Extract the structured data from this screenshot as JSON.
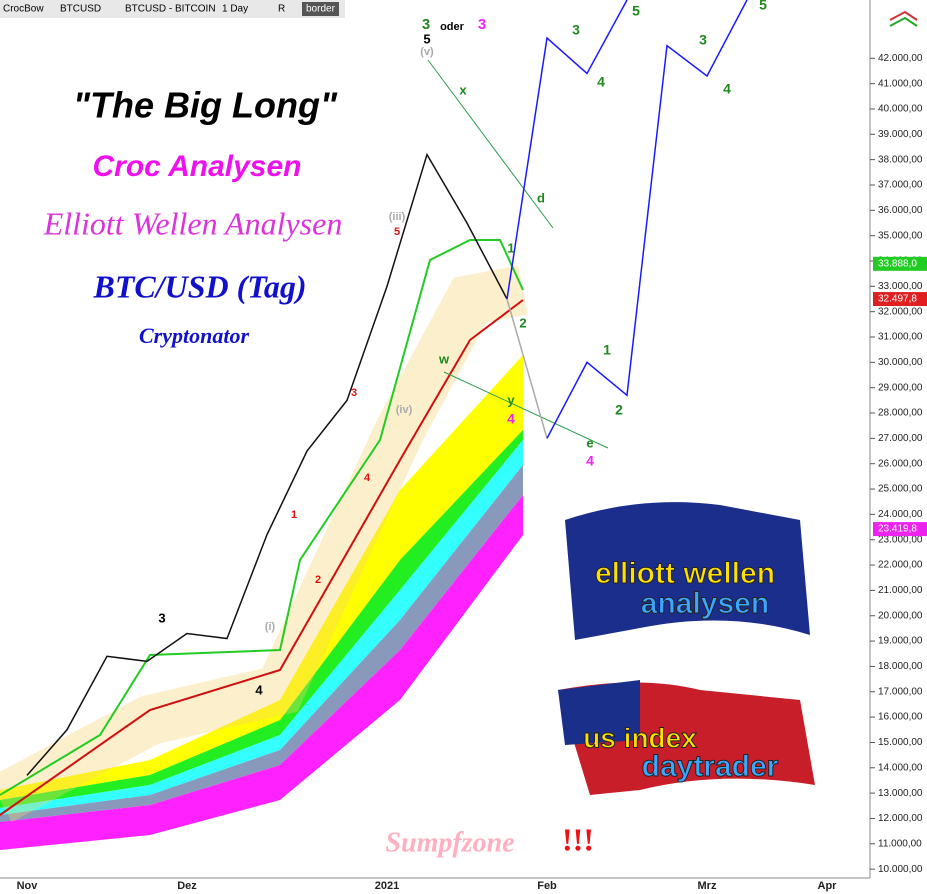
{
  "chart_data": {
    "type": "line",
    "toolbar": [
      "CrocBow",
      "BTCUSD",
      "BTCUSD - BITCOIN",
      "1 Day",
      "R",
      "border"
    ],
    "title": "\"The Big Long\"",
    "subtitles": [
      "Croc Analysen",
      "Elliott Wellen Analysen",
      "BTC/USD (Tag)",
      "Cryptonator"
    ],
    "footer": [
      "Sumpfzone",
      "!!!"
    ],
    "logos": [
      "elliott wellen",
      "analysen",
      "us index",
      "daytrader"
    ],
    "categories": [
      "Nov",
      null,
      null,
      null,
      "Dez",
      null,
      null,
      null,
      null,
      "2021",
      null,
      null,
      null,
      "Feb",
      null,
      null,
      null,
      "Mrz",
      null,
      null,
      "Apr"
    ],
    "series": [
      {
        "color": "#111111",
        "values": [
          13700,
          15500,
          18400,
          18200,
          19300,
          19100,
          23200,
          26500,
          28500,
          33000,
          38200,
          35500,
          32500,
          null,
          null,
          null,
          null,
          null,
          null,
          null,
          null
        ]
      },
      {
        "color": "#1a1aff",
        "values": [
          null,
          null,
          null,
          null,
          null,
          null,
          null,
          null,
          null,
          null,
          null,
          null,
          32500,
          42800,
          41400,
          44300,
          null,
          null,
          null,
          null,
          null
        ]
      },
      {
        "color": "#aaaaaa",
        "values": [
          null,
          null,
          null,
          null,
          null,
          null,
          null,
          null,
          null,
          null,
          null,
          null,
          32500,
          27000,
          null,
          null,
          null,
          null,
          null,
          null,
          null
        ]
      },
      {
        "color": "#1a1aff",
        "values": [
          null,
          null,
          null,
          null,
          null,
          null,
          null,
          null,
          null,
          null,
          null,
          null,
          null,
          27000,
          30000,
          28700,
          42500,
          41300,
          44300,
          null,
          null
        ]
      }
    ],
    "ylim": [
      9650,
      44300
    ],
    "yticks": [
      {
        "value": 10000,
        "label": "10.000,00"
      },
      {
        "value": 11000,
        "label": "11.000,00"
      },
      {
        "value": 12000,
        "label": "12.000,00"
      },
      {
        "value": 13000,
        "label": "13.000,00"
      },
      {
        "value": 14000,
        "label": "14.000,00"
      },
      {
        "value": 15000,
        "label": "15.000,00"
      },
      {
        "value": 16000,
        "label": "16.000,00"
      },
      {
        "value": 17000,
        "label": "17.000,00"
      },
      {
        "value": 18000,
        "label": "18.000,00"
      },
      {
        "value": 19000,
        "label": "19.000,00"
      },
      {
        "value": 20000,
        "label": "20.000,00"
      },
      {
        "value": 21000,
        "label": "21.000,00"
      },
      {
        "value": 22000,
        "label": "22.000,00"
      },
      {
        "value": 23000,
        "label": "23.000,00"
      },
      {
        "value": 24000,
        "label": "24.000,00"
      },
      {
        "value": 25000,
        "label": "25.000,00"
      },
      {
        "value": 26000,
        "label": "26.000,00"
      },
      {
        "value": 27000,
        "label": "27.000,00"
      },
      {
        "value": 28000,
        "label": "28.000,00"
      },
      {
        "value": 29000,
        "label": "29.000,00"
      },
      {
        "value": 30000,
        "label": "30.000,00"
      },
      {
        "value": 31000,
        "label": "31.000,00"
      },
      {
        "value": 32000,
        "label": "32.000,00"
      },
      {
        "value": 33000,
        "label": "33.000,00"
      },
      {
        "value": 34000,
        "label": "34.000,00"
      },
      {
        "value": 35000,
        "label": "35.000,00"
      },
      {
        "value": 36000,
        "label": "36.000,00"
      },
      {
        "value": 37000,
        "label": "37.000,00"
      },
      {
        "value": 38000,
        "label": "38.000,00"
      },
      {
        "value": 39000,
        "label": "39.000,00"
      },
      {
        "value": 40000,
        "label": "40.000,00"
      },
      {
        "value": 41000,
        "label": "41.000,00"
      },
      {
        "value": 42000,
        "label": "42.000,00"
      }
    ],
    "price_tags": [
      {
        "value": 33888.0,
        "label": "33.888,0",
        "color": "#22cc22"
      },
      {
        "value": 32497.8,
        "label": "32.497,8",
        "color": "#e02020"
      },
      {
        "value": 23419.8,
        "label": "23.419,8",
        "color": "#ee22ee"
      }
    ],
    "annotations": [
      "3",
      "oder",
      "3",
      "5",
      "(v)",
      "x",
      "d",
      "(iii)",
      "5",
      "1",
      "2",
      "w",
      "y",
      "4",
      "3",
      "(iv)",
      "e",
      "4",
      "4",
      "1",
      "2",
      "3",
      "(i)",
      "4",
      "3",
      "5",
      "4",
      "1",
      "2",
      "3",
      "4",
      "5"
    ]
  }
}
